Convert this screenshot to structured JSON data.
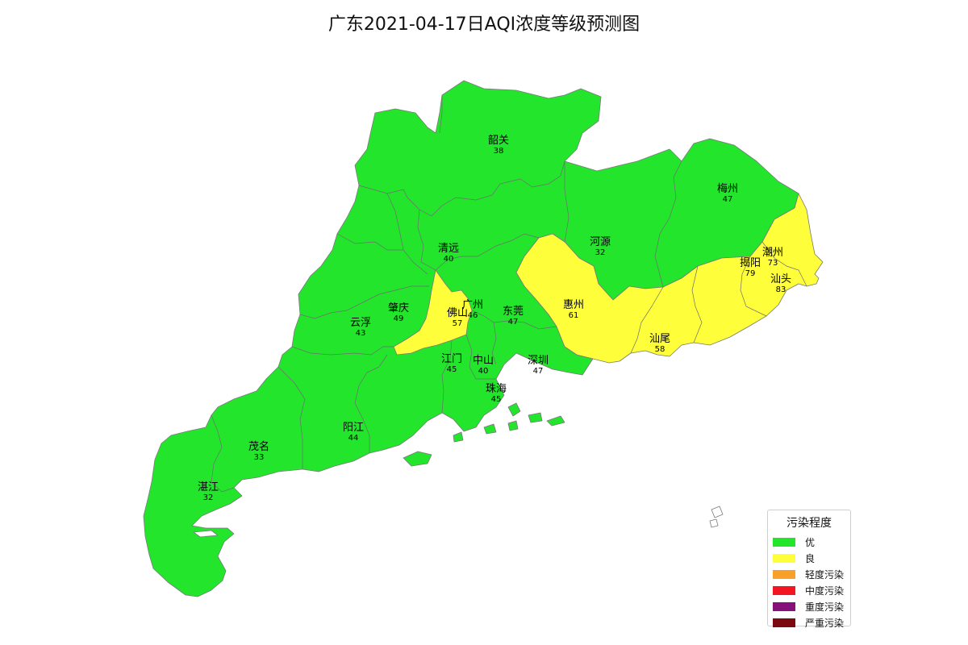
{
  "title": "广东2021-04-17日AQI浓度等级预测图",
  "legend": {
    "title": "污染程度",
    "items": [
      {
        "label": "优",
        "color": "#22e52c"
      },
      {
        "label": "良",
        "color": "#fefe3a"
      },
      {
        "label": "轻度污染",
        "color": "#f8a02a"
      },
      {
        "label": "中度污染",
        "color": "#f31622"
      },
      {
        "label": "重度污染",
        "color": "#86117b"
      },
      {
        "label": "严重污染",
        "color": "#7a0a0f"
      }
    ]
  },
  "cities": [
    {
      "name": "韶关",
      "aqi": "38",
      "level": "优"
    },
    {
      "name": "梅州",
      "aqi": "47",
      "level": "优"
    },
    {
      "name": "清远",
      "aqi": "40",
      "level": "优"
    },
    {
      "name": "河源",
      "aqi": "32",
      "level": "优"
    },
    {
      "name": "潮州",
      "aqi": "73",
      "level": "良"
    },
    {
      "name": "揭阳",
      "aqi": "79",
      "level": "良"
    },
    {
      "name": "汕头",
      "aqi": "83",
      "level": "良"
    },
    {
      "name": "肇庆",
      "aqi": "49",
      "level": "优"
    },
    {
      "name": "广州",
      "aqi": "46",
      "level": "优"
    },
    {
      "name": "佛山",
      "aqi": "57",
      "level": "良"
    },
    {
      "name": "东莞",
      "aqi": "47",
      "level": "优"
    },
    {
      "name": "惠州",
      "aqi": "61",
      "level": "良"
    },
    {
      "name": "云浮",
      "aqi": "43",
      "level": "优"
    },
    {
      "name": "汕尾",
      "aqi": "58",
      "level": "良"
    },
    {
      "name": "江门",
      "aqi": "45",
      "level": "优"
    },
    {
      "name": "中山",
      "aqi": "40",
      "level": "优"
    },
    {
      "name": "深圳",
      "aqi": "47",
      "level": "优"
    },
    {
      "name": "珠海",
      "aqi": "45",
      "level": "优"
    },
    {
      "name": "阳江",
      "aqi": "44",
      "level": "优"
    },
    {
      "name": "茂名",
      "aqi": "33",
      "level": "优"
    },
    {
      "name": "湛江",
      "aqi": "32",
      "level": "优"
    }
  ]
}
